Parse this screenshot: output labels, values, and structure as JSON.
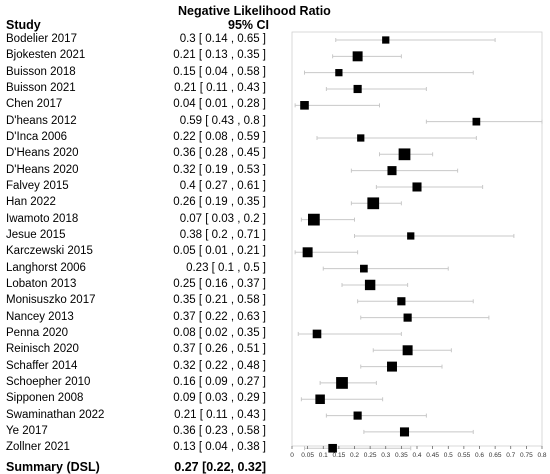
{
  "headers": {
    "title_line": "Negative Likelihood Ratio",
    "study_col": "Study",
    "estimate_col": "95% CI"
  },
  "chart_data": {
    "type": "forest",
    "measure": "Negative Likelihood Ratio",
    "xlim": [
      0,
      0.8
    ],
    "xticks": [
      "0",
      "0.05",
      "0.1",
      "0.15",
      "0.2",
      "0.25",
      "0.3",
      "0.35",
      "0.4",
      "0.45",
      "0.5",
      "0.55",
      "0.6",
      "0.65",
      "0.7",
      "0.75",
      "0.8"
    ],
    "studies": [
      {
        "name": "Bodelier 2017",
        "label": "0.3 [ 0.14 , 0.65 ]",
        "est": 0.3,
        "lo": 0.14,
        "hi": 0.65
      },
      {
        "name": "Bjokesten 2021",
        "label": "0.21 [ 0.13 , 0.35 ]",
        "est": 0.21,
        "lo": 0.13,
        "hi": 0.35
      },
      {
        "name": "Buisson 2018",
        "label": "0.15 [ 0.04 , 0.58 ]",
        "est": 0.15,
        "lo": 0.04,
        "hi": 0.58
      },
      {
        "name": "Buisson 2021",
        "label": "0.21 [ 0.11 , 0.43 ]",
        "est": 0.21,
        "lo": 0.11,
        "hi": 0.43
      },
      {
        "name": "Chen 2017",
        "label": "0.04 [ 0.01 , 0.28 ]",
        "est": 0.04,
        "lo": 0.01,
        "hi": 0.28
      },
      {
        "name": "D'heans 2012",
        "label": "0.59 [ 0.43 , 0.8 ]",
        "est": 0.59,
        "lo": 0.43,
        "hi": 0.8
      },
      {
        "name": "D'Inca 2006",
        "label": "0.22 [ 0.08 , 0.59 ]",
        "est": 0.22,
        "lo": 0.08,
        "hi": 0.59
      },
      {
        "name": "D'Heans 2020",
        "label": "0.36 [ 0.28 , 0.45 ]",
        "est": 0.36,
        "lo": 0.28,
        "hi": 0.45
      },
      {
        "name": "D'Heans 2020",
        "label": "0.32 [ 0.19 , 0.53 ]",
        "est": 0.32,
        "lo": 0.19,
        "hi": 0.53
      },
      {
        "name": "Falvey 2015",
        "label": "0.4 [ 0.27 , 0.61 ]",
        "est": 0.4,
        "lo": 0.27,
        "hi": 0.61
      },
      {
        "name": "Han 2022",
        "label": "0.26 [ 0.19 , 0.35 ]",
        "est": 0.26,
        "lo": 0.19,
        "hi": 0.35
      },
      {
        "name": "Iwamoto 2018",
        "label": "0.07 [ 0.03 , 0.2 ]",
        "est": 0.07,
        "lo": 0.03,
        "hi": 0.2
      },
      {
        "name": "Jesue 2015",
        "label": "0.38 [ 0.2 , 0.71 ]",
        "est": 0.38,
        "lo": 0.2,
        "hi": 0.71
      },
      {
        "name": "Karczewski 2015",
        "label": "0.05 [ 0.01 , 0.21 ]",
        "est": 0.05,
        "lo": 0.01,
        "hi": 0.21
      },
      {
        "name": "Langhorst 2006",
        "label": "0.23 [ 0.1 , 0.5 ]",
        "est": 0.23,
        "lo": 0.1,
        "hi": 0.5
      },
      {
        "name": "Lobaton 2013",
        "label": "0.25 [ 0.16 , 0.37 ]",
        "est": 0.25,
        "lo": 0.16,
        "hi": 0.37
      },
      {
        "name": "Monisuszko 2017",
        "label": "0.35 [ 0.21 , 0.58 ]",
        "est": 0.35,
        "lo": 0.21,
        "hi": 0.58
      },
      {
        "name": "Nancey 2013",
        "label": "0.37 [ 0.22 , 0.63 ]",
        "est": 0.37,
        "lo": 0.22,
        "hi": 0.63
      },
      {
        "name": "Penna 2020",
        "label": "0.08 [ 0.02 , 0.35 ]",
        "est": 0.08,
        "lo": 0.02,
        "hi": 0.35
      },
      {
        "name": "Reinisch 2020",
        "label": "0.37 [ 0.26 , 0.51 ]",
        "est": 0.37,
        "lo": 0.26,
        "hi": 0.51
      },
      {
        "name": "Schaffer 2014",
        "label": "0.32 [ 0.22 , 0.48 ]",
        "est": 0.32,
        "lo": 0.22,
        "hi": 0.48
      },
      {
        "name": "Schoepher 2010",
        "label": "0.16 [ 0.09 , 0.27 ]",
        "est": 0.16,
        "lo": 0.09,
        "hi": 0.27
      },
      {
        "name": "Sipponen 2008",
        "label": "0.09 [ 0.03 , 0.29 ]",
        "est": 0.09,
        "lo": 0.03,
        "hi": 0.29
      },
      {
        "name": "Swaminathan 2022",
        "label": "0.21 [ 0.11 , 0.43 ]",
        "est": 0.21,
        "lo": 0.11,
        "hi": 0.43
      },
      {
        "name": "Ye 2017",
        "label": "0.36 [ 0.23 , 0.58 ]",
        "est": 0.36,
        "lo": 0.23,
        "hi": 0.58
      },
      {
        "name": "Zollner 2021",
        "label": "0.13 [ 0.04 , 0.38 ]",
        "est": 0.13,
        "lo": 0.04,
        "hi": 0.38
      }
    ],
    "weights": [
      0.25,
      0.55,
      0.25,
      0.35,
      0.4,
      0.3,
      0.25,
      0.75,
      0.45,
      0.45,
      0.75,
      0.75,
      0.25,
      0.55,
      0.3,
      0.6,
      0.35,
      0.35,
      0.4,
      0.55,
      0.55,
      0.75,
      0.5,
      0.35,
      0.45,
      0.4
    ],
    "summary": {
      "name": "Summary (DSL)",
      "label": "0.27 [0.22, 0.32]",
      "est": 0.27,
      "lo": 0.22,
      "hi": 0.32
    },
    "colors": {
      "marker": "#000000",
      "ci_line": "#c8c8c8",
      "axis": "#555555"
    }
  }
}
